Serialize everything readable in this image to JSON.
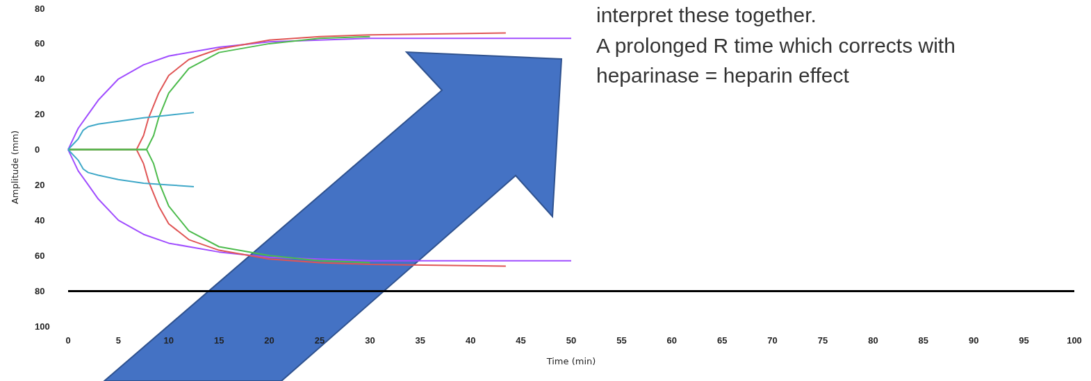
{
  "chart_data": {
    "type": "line",
    "xlabel": "Time (min)",
    "ylabel": "Amplitude (mm)",
    "xlim": [
      0,
      100
    ],
    "xticks": [
      0,
      5,
      10,
      15,
      20,
      25,
      30,
      35,
      40,
      45,
      50,
      55,
      60,
      65,
      70,
      75,
      80,
      85,
      90,
      95,
      100
    ],
    "ylim": [
      -100,
      80
    ],
    "yticks": [
      80,
      60,
      40,
      20,
      0,
      {
        "value": -20,
        "label": "20"
      },
      {
        "value": -40,
        "label": "40"
      },
      {
        "value": -60,
        "label": "60"
      },
      {
        "value": -80,
        "label": "80"
      },
      {
        "value": -100,
        "label": "100"
      }
    ],
    "grid": false,
    "marker": "none",
    "line_style": "solid",
    "series": [
      {
        "color": "#a04dff",
        "x": [
          0,
          1,
          2,
          3,
          5,
          7.5,
          10,
          15,
          20,
          30,
          40,
          50
        ],
        "values": [
          0,
          12,
          20,
          28,
          40,
          48,
          53,
          58,
          61,
          63,
          63,
          63
        ]
      },
      {
        "color": "#a04dff",
        "x": [
          0,
          1,
          2,
          3,
          5,
          7.5,
          10,
          15,
          20,
          30,
          40,
          50
        ],
        "values": [
          0,
          -12,
          -20,
          -28,
          -40,
          -48,
          -53,
          -58,
          -61,
          -63,
          -63,
          -63
        ]
      },
      {
        "color": "#e05555",
        "x": [
          0,
          6.8,
          7.5,
          8,
          9,
          10,
          12,
          15,
          20,
          25,
          30,
          43.5
        ],
        "values": [
          0,
          0,
          8,
          18,
          32,
          42,
          51,
          57,
          62,
          64,
          65,
          66
        ]
      },
      {
        "color": "#e05555",
        "x": [
          0,
          6.8,
          7.5,
          8,
          9,
          10,
          12,
          15,
          20,
          25,
          30,
          43.5
        ],
        "values": [
          0,
          0,
          -8,
          -18,
          -32,
          -42,
          -51,
          -57,
          -62,
          -64,
          -65,
          -66
        ]
      },
      {
        "color": "#4cbb4c",
        "x": [
          0,
          7.8,
          8.5,
          9,
          10,
          12,
          15,
          20,
          25,
          30
        ],
        "values": [
          0,
          0,
          8,
          18,
          32,
          46,
          55,
          60,
          63,
          64
        ]
      },
      {
        "color": "#4cbb4c",
        "x": [
          0,
          7.8,
          8.5,
          9,
          10,
          12,
          15,
          20,
          25,
          30
        ],
        "values": [
          0,
          0,
          -8,
          -18,
          -32,
          -46,
          -55,
          -60,
          -63,
          -64
        ]
      },
      {
        "color": "#3fa8c8",
        "x": [
          0,
          1,
          1.5,
          2,
          3,
          5,
          7.5,
          10,
          12.5
        ],
        "values": [
          0,
          6,
          11,
          13,
          14.5,
          16,
          18,
          19.5,
          21
        ]
      },
      {
        "color": "#3fa8c8",
        "x": [
          0,
          1,
          1.5,
          2,
          3,
          5,
          7.5,
          10,
          12.5
        ],
        "values": [
          0,
          -6,
          -11,
          -13,
          -14.5,
          -17,
          -19,
          -20,
          -21
        ]
      }
    ],
    "ref_lines": [
      {
        "axis": "y",
        "value": -80,
        "color": "#000000"
      }
    ],
    "annotations": [
      "interpret these together.",
      "A prolonged R time which corrects with heparinase = heparin effect"
    ]
  }
}
